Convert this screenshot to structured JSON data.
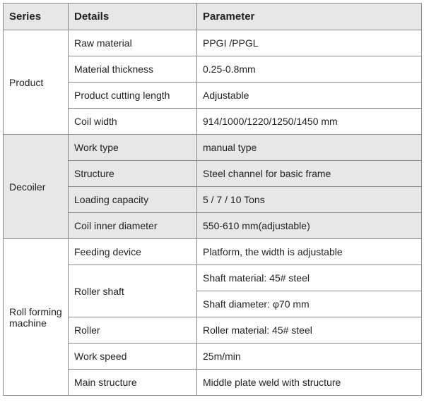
{
  "headers": {
    "series": "Series",
    "details": "Details",
    "parameter": "Parameter"
  },
  "groups": [
    {
      "series": "Product",
      "bg": "white-row",
      "rows": [
        {
          "detail": "Raw material",
          "param": "PPGI /PPGL",
          "detail_rowspan": 1
        },
        {
          "detail": "Material thickness",
          "param": "0.25-0.8mm",
          "detail_rowspan": 1
        },
        {
          "detail": "Product cutting length",
          "param": "Adjustable",
          "detail_rowspan": 1
        },
        {
          "detail": "Coil width",
          "param": "914/1000/1220/1250/1450 mm",
          "detail_rowspan": 1
        }
      ]
    },
    {
      "series": "Decoiler",
      "bg": "alt-row",
      "rows": [
        {
          "detail": "Work type",
          "param": "manual type",
          "detail_rowspan": 1
        },
        {
          "detail": "Structure",
          "param": "Steel channel for basic frame",
          "detail_rowspan": 1
        },
        {
          "detail": "Loading capacity",
          "param": "5 / 7 / 10 Tons",
          "detail_rowspan": 1
        },
        {
          "detail": "Coil inner diameter",
          "param": "550-610 mm(adjustable)",
          "detail_rowspan": 1
        }
      ]
    },
    {
      "series": "Roll forming machine",
      "bg": "white-row",
      "rows": [
        {
          "detail": "Feeding device",
          "param": "Platform, the width is adjustable",
          "detail_rowspan": 1
        },
        {
          "detail": "Roller shaft",
          "param": "Shaft material: 45# steel",
          "detail_rowspan": 2
        },
        {
          "detail": null,
          "param": "Shaft diameter: φ70 mm",
          "detail_rowspan": 0
        },
        {
          "detail": "Roller",
          "param": "Roller material: 45# steel",
          "detail_rowspan": 1
        },
        {
          "detail": "Work speed",
          "param": "25m/min",
          "detail_rowspan": 1
        },
        {
          "detail": "Main structure",
          "param": "Middle plate weld with structure",
          "detail_rowspan": 1
        }
      ]
    }
  ]
}
